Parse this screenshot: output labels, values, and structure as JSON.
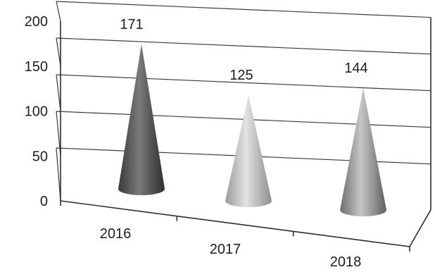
{
  "chart_data": {
    "type": "bar",
    "shape": "cone",
    "categories": [
      "2016",
      "2017",
      "2018"
    ],
    "values": [
      171,
      125,
      144
    ],
    "data_labels": [
      "171",
      "125",
      "144"
    ],
    "ylim": [
      0,
      200
    ],
    "yticks": [
      "0",
      "50",
      "100",
      "150",
      "200"
    ],
    "title": "",
    "xlabel": "",
    "ylabel": "",
    "grid": true,
    "legend": "none",
    "colors": [
      "#555555",
      "#b4b4b4",
      "#8a8a8a"
    ]
  }
}
